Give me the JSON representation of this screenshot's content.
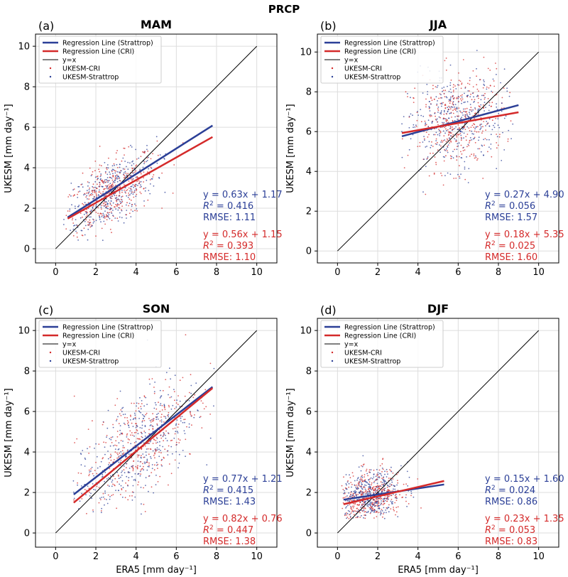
{
  "figure": {
    "title": "PRCP"
  },
  "colors": {
    "strattrop": "#2b3f97",
    "cri": "#d42a2a",
    "identity": "#000000",
    "grid": "#dddddd"
  },
  "legend": {
    "strattrop_line": "Regression Line (Strattrop)",
    "cri_line": "Regression Line (CRI)",
    "identity": "y=x",
    "cri_points": "UKESM-CRI",
    "strattrop_points": "UKESM-Strattrop"
  },
  "axes": {
    "xlabel": "ERA5 [mm day⁻¹]",
    "ylabel": "UKESM [mm day⁻¹]"
  },
  "chart_data": [
    {
      "type": "scatter",
      "panel": "(a)",
      "title": "MAM",
      "xlim": [
        -1,
        11
      ],
      "ylim": [
        -0.7,
        10.6
      ],
      "xticks": [
        0,
        2,
        4,
        6,
        8,
        10
      ],
      "yticks": [
        0,
        2,
        4,
        6,
        8,
        10
      ],
      "identity_line": [
        [
          0,
          0
        ],
        [
          10,
          10
        ]
      ],
      "cloud": {
        "cx": 2.7,
        "cy": 2.7,
        "sx": 1.15,
        "sy": 1.0,
        "rho": 0.6,
        "xmin": 0.4,
        "xmax": 8.0,
        "ymin": 0.4,
        "ymax": 8.0,
        "n": 380
      },
      "series": [
        {
          "name": "Strattrop",
          "slope": 0.63,
          "intercept": 1.17,
          "x_range": [
            0.6,
            7.8
          ],
          "eq": "y = 0.63x + 1.17",
          "r2_value": "= 0.416",
          "rmse": "RMSE: 1.11"
        },
        {
          "name": "CRI",
          "slope": 0.56,
          "intercept": 1.15,
          "x_range": [
            0.6,
            7.8
          ],
          "eq": "y = 0.56x + 1.15",
          "r2_value": "= 0.393",
          "rmse": "RMSE: 1.10"
        }
      ]
    },
    {
      "type": "scatter",
      "panel": "(b)",
      "title": "JJA",
      "xlim": [
        -1,
        11
      ],
      "ylim": [
        -0.6,
        10.9
      ],
      "xticks": [
        0,
        2,
        4,
        6,
        8,
        10
      ],
      "yticks": [
        0,
        2,
        4,
        6,
        8,
        10
      ],
      "identity_line": [
        [
          0,
          0
        ],
        [
          10,
          10
        ]
      ],
      "cloud": {
        "cx": 5.9,
        "cy": 6.5,
        "sx": 1.2,
        "sy": 1.2,
        "rho": 0.1,
        "xmin": 3.2,
        "xmax": 9.0,
        "ymin": 2.7,
        "ymax": 10.5,
        "n": 380
      },
      "series": [
        {
          "name": "Strattrop",
          "slope": 0.27,
          "intercept": 4.9,
          "x_range": [
            3.2,
            9.0
          ],
          "eq": "y = 0.27x + 4.90",
          "r2_value": "= 0.056",
          "rmse": "RMSE: 1.57"
        },
        {
          "name": "CRI",
          "slope": 0.18,
          "intercept": 5.35,
          "x_range": [
            3.2,
            9.0
          ],
          "eq": "y = 0.18x + 5.35",
          "r2_value": "= 0.025",
          "rmse": "RMSE: 1.60"
        }
      ]
    },
    {
      "type": "scatter",
      "panel": "(c)",
      "title": "SON",
      "xlim": [
        -1,
        11
      ],
      "ylim": [
        -0.7,
        10.6
      ],
      "xticks": [
        0,
        2,
        4,
        6,
        8,
        10
      ],
      "yticks": [
        0,
        2,
        4,
        6,
        8,
        10
      ],
      "identity_line": [
        [
          0,
          0
        ],
        [
          10,
          10
        ]
      ],
      "cloud": {
        "cx": 4.0,
        "cy": 4.2,
        "sx": 1.55,
        "sy": 1.8,
        "rho": 0.65,
        "xmin": 0.8,
        "xmax": 8.0,
        "ymin": 0.9,
        "ymax": 9.8,
        "n": 380
      },
      "series": [
        {
          "name": "Strattrop",
          "slope": 0.77,
          "intercept": 1.21,
          "x_range": [
            0.9,
            7.8
          ],
          "eq": "y = 0.77x + 1.21",
          "r2_value": "= 0.415",
          "rmse": "RMSE: 1.43"
        },
        {
          "name": "CRI",
          "slope": 0.82,
          "intercept": 0.76,
          "x_range": [
            0.9,
            7.8
          ],
          "eq": "y = 0.82x + 0.76",
          "r2_value": "= 0.447",
          "rmse": "RMSE: 1.38"
        }
      ]
    },
    {
      "type": "scatter",
      "panel": "(d)",
      "title": "DJF",
      "xlim": [
        -1,
        11
      ],
      "ylim": [
        -0.7,
        10.6
      ],
      "xticks": [
        0,
        2,
        4,
        6,
        8,
        10
      ],
      "yticks": [
        0,
        2,
        4,
        6,
        8,
        10
      ],
      "identity_line": [
        [
          0,
          0
        ],
        [
          10,
          10
        ]
      ],
      "cloud": {
        "cx": 1.6,
        "cy": 1.8,
        "sx": 0.8,
        "sy": 0.65,
        "rho": 0.25,
        "xmin": 0.2,
        "xmax": 5.3,
        "ymin": 0.7,
        "ymax": 5.7,
        "n": 380
      },
      "series": [
        {
          "name": "Strattrop",
          "slope": 0.15,
          "intercept": 1.6,
          "x_range": [
            0.3,
            5.3
          ],
          "eq": "y = 0.15x + 1.60",
          "r2_value": "= 0.024",
          "rmse": "RMSE: 0.86"
        },
        {
          "name": "CRI",
          "slope": 0.23,
          "intercept": 1.35,
          "x_range": [
            0.3,
            5.3
          ],
          "eq": "y = 0.23x + 1.35",
          "r2_value": "= 0.053",
          "rmse": "RMSE: 0.83"
        }
      ]
    }
  ]
}
